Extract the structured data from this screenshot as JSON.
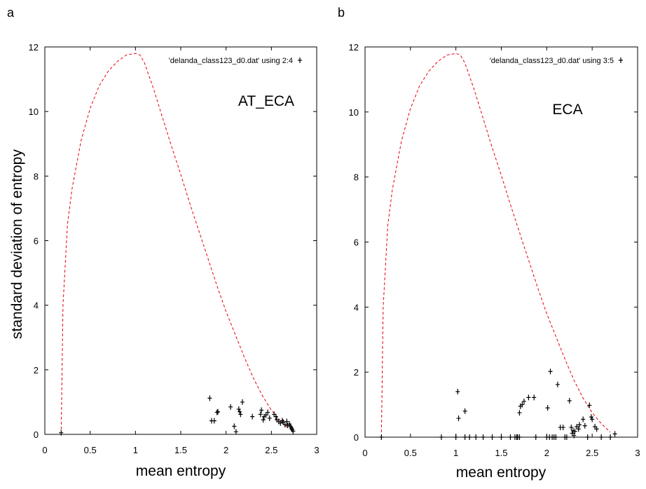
{
  "panels": [
    {
      "letter": "a",
      "ylabel": "standard deviation of entropy",
      "xlabel": "mean entropy",
      "annotation": "AT_ECA"
    },
    {
      "letter": "b",
      "xlabel": "mean entropy",
      "annotation": "ECA"
    }
  ],
  "colors": {
    "envelope": "#e8000b",
    "points": "#000000",
    "frame": "#000000"
  },
  "chart_data": [
    {
      "type": "scatter",
      "xlim": [
        0,
        3
      ],
      "ylim": [
        0,
        12
      ],
      "xticks": [
        "0",
        "0.5",
        "1",
        "1.5",
        "2",
        "2.5",
        "3"
      ],
      "yticks": [
        "0",
        "2",
        "4",
        "6",
        "8",
        "10",
        "12"
      ],
      "xlabel": "mean entropy",
      "ylabel": "standard deviation of entropy",
      "legend": {
        "label": "'delanda_class123_d0.dat' using 2:4",
        "position": "top-right"
      },
      "annotation": "AT_ECA",
      "grid": false,
      "series": [
        {
          "name": "'delanda_class123_d0.dat' using 2:4",
          "marker": "+",
          "points": [
            [
              0.18,
              0.05
            ],
            [
              1.82,
              1.12
            ],
            [
              1.84,
              0.42
            ],
            [
              1.87,
              0.42
            ],
            [
              1.9,
              0.68
            ],
            [
              1.91,
              0.7
            ],
            [
              2.05,
              0.85
            ],
            [
              2.09,
              0.25
            ],
            [
              2.11,
              0.08
            ],
            [
              2.14,
              0.78
            ],
            [
              2.15,
              0.7
            ],
            [
              2.16,
              0.62
            ],
            [
              2.18,
              1.0
            ],
            [
              2.29,
              0.55
            ],
            [
              2.38,
              0.62
            ],
            [
              2.39,
              0.75
            ],
            [
              2.41,
              0.45
            ],
            [
              2.42,
              0.55
            ],
            [
              2.44,
              0.6
            ],
            [
              2.46,
              0.68
            ],
            [
              2.48,
              0.5
            ],
            [
              2.53,
              0.62
            ],
            [
              2.55,
              0.55
            ],
            [
              2.56,
              0.45
            ],
            [
              2.58,
              0.4
            ],
            [
              2.6,
              0.35
            ],
            [
              2.62,
              0.42
            ],
            [
              2.63,
              0.38
            ],
            [
              2.65,
              0.3
            ],
            [
              2.67,
              0.4
            ],
            [
              2.68,
              0.28
            ],
            [
              2.7,
              0.32
            ],
            [
              2.71,
              0.25
            ],
            [
              2.72,
              0.2
            ],
            [
              2.73,
              0.15
            ],
            [
              2.74,
              0.1
            ]
          ]
        },
        {
          "name": "",
          "style": "dashed",
          "points": [
            [
              0.18,
              0.0
            ],
            [
              0.2,
              4.0
            ],
            [
              0.25,
              6.5
            ],
            [
              0.3,
              7.6
            ],
            [
              0.4,
              9.1
            ],
            [
              0.5,
              10.1
            ],
            [
              0.6,
              10.8
            ],
            [
              0.7,
              11.25
            ],
            [
              0.8,
              11.55
            ],
            [
              0.9,
              11.75
            ],
            [
              1.0,
              11.8
            ],
            [
              1.05,
              11.75
            ],
            [
              1.1,
              11.5
            ],
            [
              1.2,
              10.7
            ],
            [
              1.3,
              9.8
            ],
            [
              1.4,
              8.9
            ],
            [
              1.5,
              8.05
            ],
            [
              1.6,
              7.15
            ],
            [
              1.7,
              6.3
            ],
            [
              1.8,
              5.45
            ],
            [
              1.9,
              4.6
            ],
            [
              2.0,
              3.8
            ],
            [
              2.1,
              3.1
            ],
            [
              2.2,
              2.4
            ],
            [
              2.3,
              1.75
            ],
            [
              2.4,
              1.2
            ],
            [
              2.5,
              0.75
            ],
            [
              2.6,
              0.42
            ],
            [
              2.7,
              0.15
            ]
          ]
        }
      ]
    },
    {
      "type": "scatter",
      "xlim": [
        0,
        3
      ],
      "ylim": [
        0,
        12
      ],
      "xticks": [
        "0",
        "0.5",
        "1",
        "1.5",
        "2",
        "2.5",
        "3"
      ],
      "yticks": [
        "0",
        "2",
        "4",
        "6",
        "8",
        "10",
        "12"
      ],
      "xlabel": "mean entropy",
      "legend": {
        "label": "'delanda_class123_d0.dat' using 3:5",
        "position": "top-right"
      },
      "annotation": "ECA",
      "grid": false,
      "series": [
        {
          "name": "'delanda_class123_d0.dat' using 3:5",
          "marker": "+",
          "points": [
            [
              0.18,
              0.0
            ],
            [
              0.84,
              0.0
            ],
            [
              1.0,
              0.0
            ],
            [
              1.02,
              1.4
            ],
            [
              1.03,
              0.58
            ],
            [
              1.1,
              0.8
            ],
            [
              1.1,
              0.0
            ],
            [
              1.15,
              0.0
            ],
            [
              1.22,
              0.0
            ],
            [
              1.3,
              0.0
            ],
            [
              1.4,
              0.0
            ],
            [
              1.5,
              0.0
            ],
            [
              1.6,
              0.0
            ],
            [
              1.65,
              0.0
            ],
            [
              1.67,
              0.0
            ],
            [
              1.68,
              0.0
            ],
            [
              1.7,
              0.0
            ],
            [
              1.7,
              0.75
            ],
            [
              1.71,
              0.95
            ],
            [
              1.73,
              1.0
            ],
            [
              1.75,
              1.1
            ],
            [
              1.8,
              1.22
            ],
            [
              1.86,
              1.22
            ],
            [
              1.88,
              0.0
            ],
            [
              2.0,
              0.0
            ],
            [
              2.01,
              0.9
            ],
            [
              2.03,
              0.0
            ],
            [
              2.04,
              2.02
            ],
            [
              2.06,
              0.0
            ],
            [
              2.08,
              0.0
            ],
            [
              2.1,
              0.0
            ],
            [
              2.12,
              1.62
            ],
            [
              2.15,
              0.3
            ],
            [
              2.18,
              0.3
            ],
            [
              2.2,
              0.0
            ],
            [
              2.22,
              0.0
            ],
            [
              2.25,
              1.12
            ],
            [
              2.27,
              0.3
            ],
            [
              2.28,
              0.12
            ],
            [
              2.29,
              0.2
            ],
            [
              2.3,
              0.05
            ],
            [
              2.31,
              0.18
            ],
            [
              2.33,
              0.32
            ],
            [
              2.35,
              0.25
            ],
            [
              2.36,
              0.38
            ],
            [
              2.4,
              0.55
            ],
            [
              2.42,
              0.35
            ],
            [
              2.45,
              0.0
            ],
            [
              2.47,
              0.98
            ],
            [
              2.49,
              0.62
            ],
            [
              2.5,
              0.55
            ],
            [
              2.53,
              0.32
            ],
            [
              2.55,
              0.25
            ],
            [
              2.6,
              0.0
            ],
            [
              2.7,
              0.0
            ],
            [
              2.75,
              0.1
            ]
          ]
        },
        {
          "name": "",
          "style": "dashed",
          "points": [
            [
              0.18,
              0.0
            ],
            [
              0.2,
              4.0
            ],
            [
              0.25,
              6.5
            ],
            [
              0.3,
              7.6
            ],
            [
              0.4,
              9.1
            ],
            [
              0.5,
              10.1
            ],
            [
              0.6,
              10.8
            ],
            [
              0.7,
              11.25
            ],
            [
              0.8,
              11.55
            ],
            [
              0.9,
              11.75
            ],
            [
              1.0,
              11.8
            ],
            [
              1.05,
              11.75
            ],
            [
              1.1,
              11.5
            ],
            [
              1.2,
              10.7
            ],
            [
              1.3,
              9.8
            ],
            [
              1.4,
              8.9
            ],
            [
              1.5,
              8.05
            ],
            [
              1.6,
              7.15
            ],
            [
              1.7,
              6.3
            ],
            [
              1.8,
              5.45
            ],
            [
              1.9,
              4.6
            ],
            [
              2.0,
              3.8
            ],
            [
              2.1,
              3.1
            ],
            [
              2.2,
              2.4
            ],
            [
              2.3,
              1.75
            ],
            [
              2.4,
              1.2
            ],
            [
              2.5,
              0.75
            ],
            [
              2.6,
              0.42
            ],
            [
              2.7,
              0.15
            ]
          ]
        }
      ]
    }
  ]
}
